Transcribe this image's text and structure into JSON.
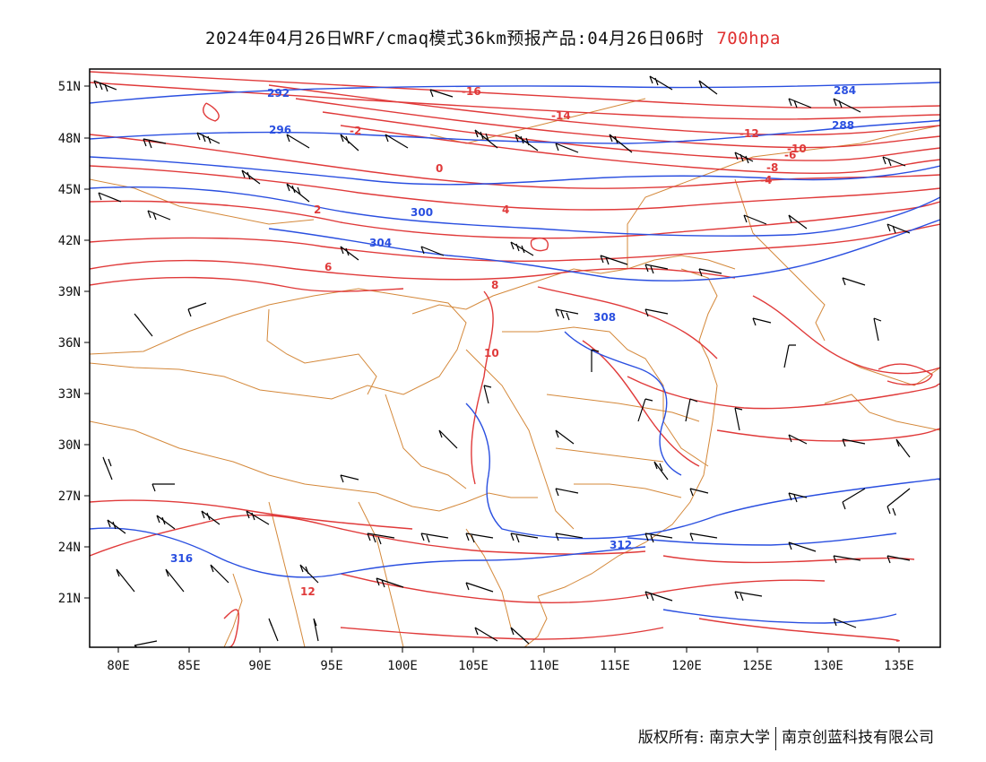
{
  "title": {
    "main": "2024年04月26日WRF/cmaq模式36km预报产品:04月26日06时",
    "level": "700hpa"
  },
  "axes": {
    "x_ticks": [
      "80E",
      "85E",
      "90E",
      "95E",
      "100E",
      "105E",
      "110E",
      "115E",
      "120E",
      "125E",
      "130E",
      "135E"
    ],
    "y_ticks": [
      "21N",
      "24N",
      "27N",
      "30N",
      "33N",
      "36N",
      "39N",
      "42N",
      "45N",
      "48N",
      "51N"
    ]
  },
  "colors": {
    "temperature": "#e03a3a",
    "geopotential": "#2a4fe0",
    "boundary": "#d4883a",
    "barb": "#000000"
  },
  "map_layers": {
    "temperature_isotherm_labels": [
      "-16",
      "-14",
      "-12",
      "-10",
      "-8",
      "-6",
      "-4",
      "-2",
      "0",
      "2",
      "4",
      "6",
      "8",
      "10",
      "12"
    ],
    "geopotential_contour_labels": [
      "284",
      "288",
      "292",
      "296",
      "300",
      "304",
      "308",
      "312",
      "316"
    ]
  },
  "footer": {
    "copyright": "版权所有: 南京大学",
    "company": "南京创蓝科技有限公司"
  }
}
